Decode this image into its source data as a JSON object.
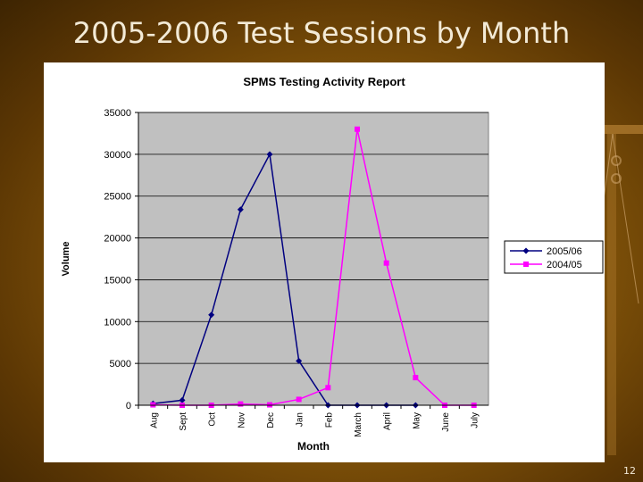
{
  "slide": {
    "title": "2005-2006 Test Sessions by Month",
    "page_number": "12"
  },
  "chart_data": {
    "type": "line",
    "title": "SPMS Testing Activity Report",
    "xlabel": "Month",
    "ylabel": "Volume",
    "categories": [
      "Aug",
      "Sept",
      "Oct",
      "Nov",
      "Dec",
      "Jan",
      "Feb",
      "March",
      "April",
      "May",
      "June",
      "July"
    ],
    "ylim": [
      0,
      35000
    ],
    "yticks": [
      0,
      5000,
      10000,
      15000,
      20000,
      25000,
      30000,
      35000
    ],
    "grid": true,
    "legend_position": "right",
    "plot_background": "#c0c0c0",
    "series": [
      {
        "name": "2005/06",
        "color": "#000080",
        "marker": "diamond",
        "values": [
          200,
          600,
          10800,
          23400,
          30000,
          5300,
          0,
          0,
          0,
          0,
          null,
          null
        ]
      },
      {
        "name": "2004/05",
        "color": "#ff00ff",
        "marker": "square",
        "values": [
          50,
          0,
          0,
          150,
          50,
          700,
          2100,
          33000,
          17000,
          3300,
          0,
          0
        ]
      }
    ]
  }
}
